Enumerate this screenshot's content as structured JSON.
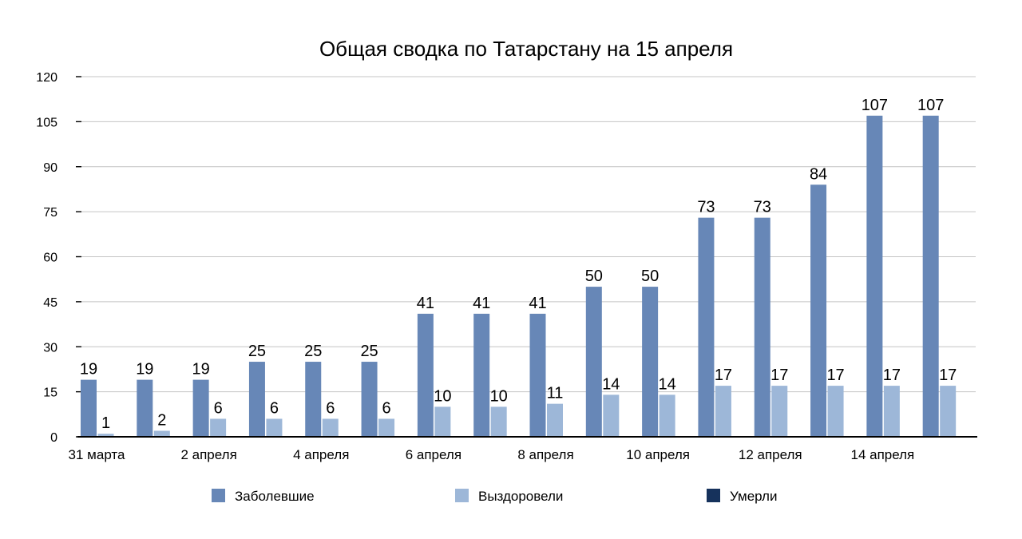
{
  "chart_data": {
    "type": "bar",
    "title": "Общая сводка по Татарстану на 15 апреля",
    "xlabel": "",
    "ylabel": "",
    "ylim": [
      0,
      120
    ],
    "yticks": [
      0,
      15,
      30,
      45,
      60,
      75,
      90,
      105,
      120
    ],
    "grid": true,
    "legend_position": "bottom",
    "categories": [
      "31 марта",
      "1 апреля",
      "2 апреля",
      "3 апреля",
      "4 апреля",
      "5 апреля",
      "6 апреля",
      "7 апреля",
      "8 апреля",
      "9 апреля",
      "10 апреля",
      "11 апреля",
      "12 апреля",
      "13 апреля",
      "14 апреля",
      "15 апреля"
    ],
    "category_labels_shown": [
      "31 марта",
      "",
      "2 апреля",
      "",
      "4 апреля",
      "",
      "6 апреля",
      "",
      "8 апреля",
      "",
      "10 апреля",
      "",
      "12 апреля",
      "",
      "14 апреля",
      ""
    ],
    "series": [
      {
        "name": "Заболевшие",
        "color": "#6787b7",
        "values": [
          19,
          19,
          19,
          25,
          25,
          25,
          41,
          41,
          41,
          50,
          50,
          73,
          73,
          84,
          107,
          107
        ]
      },
      {
        "name": "Выздоровели",
        "color": "#9db7d8",
        "values": [
          1,
          2,
          6,
          6,
          6,
          6,
          10,
          10,
          11,
          14,
          14,
          17,
          17,
          17,
          17,
          17
        ]
      },
      {
        "name": "Умерли",
        "color": "#16325c",
        "values": [
          0,
          0,
          0,
          0,
          0,
          0,
          0,
          0,
          0,
          0,
          0,
          0,
          0,
          0,
          0,
          0
        ]
      }
    ]
  }
}
